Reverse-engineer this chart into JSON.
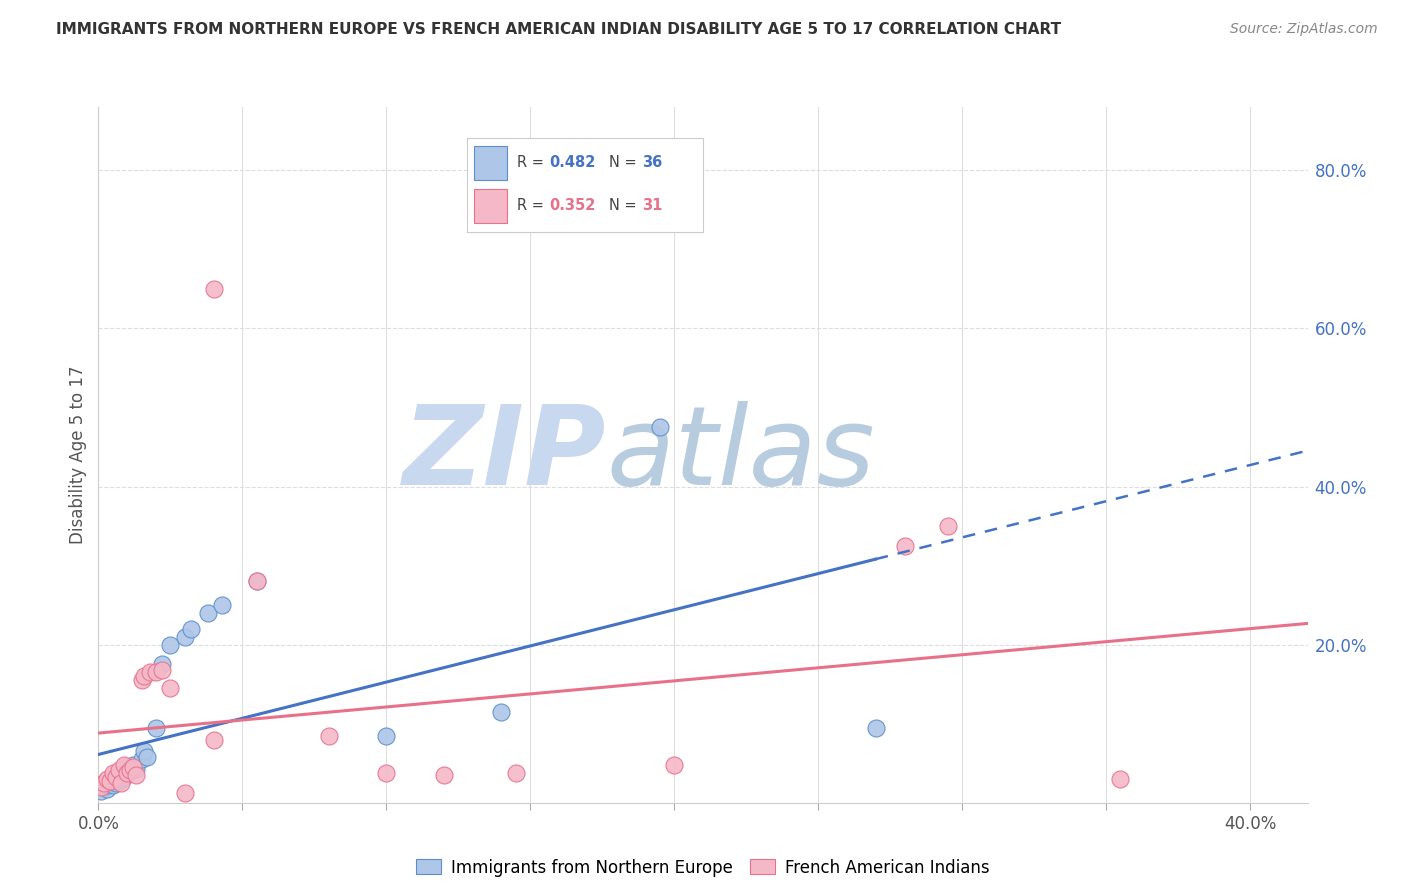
{
  "title": "IMMIGRANTS FROM NORTHERN EUROPE VS FRENCH AMERICAN INDIAN DISABILITY AGE 5 TO 17 CORRELATION CHART",
  "source": "Source: ZipAtlas.com",
  "ylabel": "Disability Age 5 to 17",
  "xlim": [
    0.0,
    0.42
  ],
  "ylim": [
    0.0,
    0.88
  ],
  "xticks": [
    0.0,
    0.05,
    0.1,
    0.15,
    0.2,
    0.25,
    0.3,
    0.35,
    0.4
  ],
  "xtick_labels": [
    "0.0%",
    "",
    "",
    "",
    "",
    "",
    "",
    "",
    "40.0%"
  ],
  "yticks_right": [
    0.2,
    0.4,
    0.6,
    0.8
  ],
  "ytick_right_labels": [
    "20.0%",
    "40.0%",
    "60.0%",
    "80.0%"
  ],
  "right_axis_color": "#4472c4",
  "legend_label_blue": "Immigrants from Northern Europe",
  "legend_label_pink": "French American Indians",
  "blue_color": "#aec6e8",
  "pink_color": "#f4b8c8",
  "blue_edge_color": "#5b8fc9",
  "pink_edge_color": "#e8718a",
  "blue_line_color": "#4472c4",
  "pink_line_color": "#e8718a",
  "blue_r": "0.482",
  "blue_n": "36",
  "pink_r": "0.352",
  "pink_n": "31",
  "blue_scatter_x": [
    0.001,
    0.002,
    0.002,
    0.003,
    0.003,
    0.004,
    0.004,
    0.005,
    0.005,
    0.006,
    0.006,
    0.007,
    0.007,
    0.008,
    0.008,
    0.009,
    0.01,
    0.01,
    0.011,
    0.012,
    0.013,
    0.015,
    0.016,
    0.017,
    0.02,
    0.022,
    0.025,
    0.03,
    0.032,
    0.038,
    0.043,
    0.055,
    0.1,
    0.14,
    0.195,
    0.27
  ],
  "blue_scatter_y": [
    0.015,
    0.02,
    0.025,
    0.018,
    0.022,
    0.025,
    0.03,
    0.022,
    0.028,
    0.025,
    0.032,
    0.028,
    0.035,
    0.03,
    0.038,
    0.032,
    0.038,
    0.045,
    0.04,
    0.048,
    0.043,
    0.055,
    0.065,
    0.058,
    0.095,
    0.175,
    0.2,
    0.21,
    0.22,
    0.24,
    0.25,
    0.28,
    0.085,
    0.115,
    0.475,
    0.095
  ],
  "pink_scatter_x": [
    0.001,
    0.002,
    0.003,
    0.004,
    0.005,
    0.006,
    0.007,
    0.008,
    0.009,
    0.01,
    0.011,
    0.012,
    0.013,
    0.015,
    0.016,
    0.018,
    0.02,
    0.022,
    0.025,
    0.03,
    0.04,
    0.055,
    0.08,
    0.1,
    0.12,
    0.145,
    0.2,
    0.28,
    0.295,
    0.355,
    0.04
  ],
  "pink_scatter_y": [
    0.02,
    0.025,
    0.03,
    0.028,
    0.038,
    0.032,
    0.042,
    0.025,
    0.048,
    0.038,
    0.042,
    0.045,
    0.035,
    0.155,
    0.16,
    0.165,
    0.165,
    0.168,
    0.145,
    0.012,
    0.08,
    0.28,
    0.085,
    0.038,
    0.035,
    0.038,
    0.048,
    0.325,
    0.35,
    0.03,
    0.65
  ],
  "watermark_zip": "ZIP",
  "watermark_atlas": "atlas",
  "watermark_color": "#dce8f5",
  "background_color": "#ffffff",
  "grid_color": "#dddddd"
}
